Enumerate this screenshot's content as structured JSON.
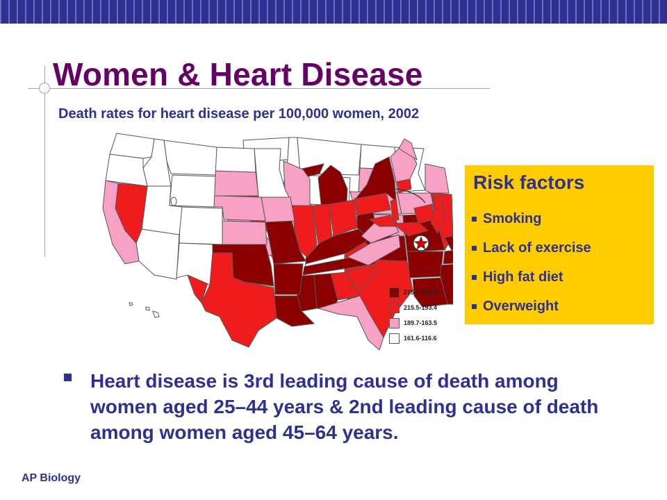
{
  "slide": {
    "title": "Women & Heart Disease",
    "subtitle": "Death rates for heart disease per 100,000 women, 2002",
    "footer": "AP Biology"
  },
  "map": {
    "legend": [
      {
        "label": "275.5-219.3",
        "color": "#8b0000"
      },
      {
        "label": "215.5-193.4",
        "color": "#ee1c1c"
      },
      {
        "label": "189.7-163.5",
        "color": "#f7a1c4"
      },
      {
        "label": "161.6-116.6",
        "color": "#ffffff"
      }
    ]
  },
  "risk_box": {
    "title": "Risk factors",
    "items": [
      "Smoking",
      "Lack of exercise",
      "High fat diet",
      "Overweight"
    ]
  },
  "main_bullet": "Heart disease is 3rd leading cause of death among women aged 25–44 years & 2nd leading cause of death among women aged 45–64 years.",
  "colors": {
    "header_bar": "#2e3192",
    "title": "#660066",
    "text": "#2e3192",
    "risk_box_bg": "#ffcc00"
  }
}
